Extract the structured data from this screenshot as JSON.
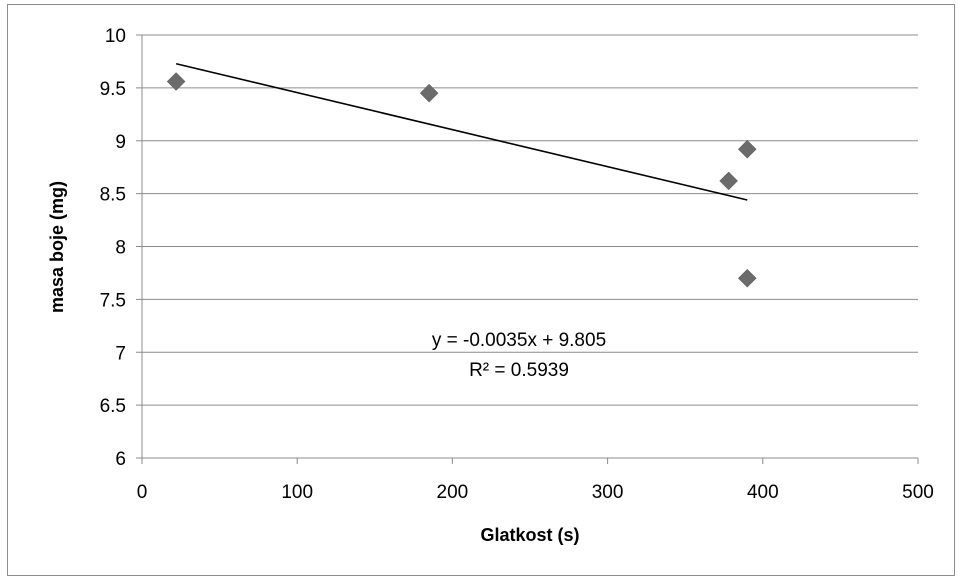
{
  "chart_data": {
    "type": "scatter",
    "title": "",
    "xlabel": "Glatkost (s)",
    "ylabel": "masa boje (mg)",
    "xlim": [
      0,
      500
    ],
    "ylim": [
      6,
      10
    ],
    "x_ticks": [
      "0",
      "100",
      "200",
      "300",
      "400",
      "500"
    ],
    "y_ticks": [
      "6",
      "6.5",
      "7",
      "7.5",
      "8",
      "8.5",
      "9",
      "9.5",
      "10"
    ],
    "grid": "horizontal",
    "marker_color": "#6b6b6b",
    "series": [
      {
        "points": [
          {
            "x": 22,
            "y": 9.56
          },
          {
            "x": 185,
            "y": 9.45
          },
          {
            "x": 378,
            "y": 8.62
          },
          {
            "x": 390,
            "y": 8.92
          },
          {
            "x": 390,
            "y": 7.7
          }
        ]
      }
    ],
    "trendline": {
      "slope": -0.0035,
      "intercept": 9.805,
      "x_range": [
        22,
        390
      ],
      "equation_label": "y = -0.0035x + 9.805",
      "r2_label": "R² = 0.5939"
    }
  }
}
